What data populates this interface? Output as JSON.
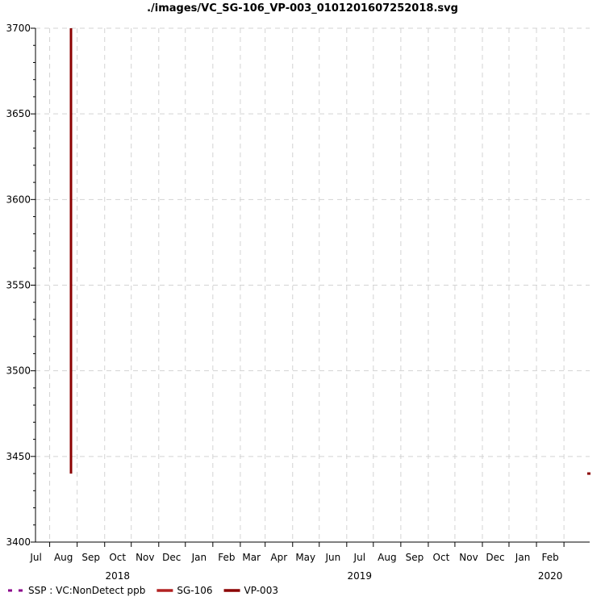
{
  "chart_data": {
    "type": "line",
    "title": "./images/VC_SG-106_VP-003_0101201607252018.svg",
    "xlabel": "",
    "ylabel": "",
    "ylim": [
      3400,
      3700
    ],
    "y_ticks": [
      3400,
      3450,
      3500,
      3550,
      3600,
      3650,
      3700
    ],
    "xlim": [
      "2018-06-15",
      "2020-03-01"
    ],
    "x_ticks": [
      {
        "date": "2018-07-01",
        "label": "Jul"
      },
      {
        "date": "2018-08-01",
        "label": "Aug"
      },
      {
        "date": "2018-09-01",
        "label": "Sep"
      },
      {
        "date": "2018-10-01",
        "label": "Oct"
      },
      {
        "date": "2018-11-01",
        "label": "Nov"
      },
      {
        "date": "2018-12-01",
        "label": "Dec"
      },
      {
        "date": "2019-01-01",
        "label": "Jan"
      },
      {
        "date": "2019-02-01",
        "label": "Feb"
      },
      {
        "date": "2019-03-01",
        "label": "Mar"
      },
      {
        "date": "2019-04-01",
        "label": "Apr"
      },
      {
        "date": "2019-05-01",
        "label": "May"
      },
      {
        "date": "2019-06-01",
        "label": "Jun"
      },
      {
        "date": "2019-07-01",
        "label": "Jul"
      },
      {
        "date": "2019-08-01",
        "label": "Aug"
      },
      {
        "date": "2019-09-01",
        "label": "Sep"
      },
      {
        "date": "2019-10-01",
        "label": "Oct"
      },
      {
        "date": "2019-11-01",
        "label": "Nov"
      },
      {
        "date": "2019-12-01",
        "label": "Dec"
      },
      {
        "date": "2020-01-01",
        "label": "Jan"
      },
      {
        "date": "2020-02-01",
        "label": "Feb"
      }
    ],
    "year_labels": [
      {
        "date": "2018-10-01",
        "label": "2018"
      },
      {
        "date": "2019-07-01",
        "label": "2019"
      },
      {
        "date": "2020-02-01",
        "label": "2020"
      }
    ],
    "grid": true,
    "legend_position": "bottom-left",
    "series": [
      {
        "name": "SSP : VC:NonDetect ppb",
        "color": "#8b008b",
        "style": "dashed",
        "points": []
      },
      {
        "name": "SG-106",
        "color": "#b22222",
        "style": "solid",
        "points": []
      },
      {
        "name": "VP-003",
        "color": "#8b0000",
        "style": "solid",
        "points": [
          {
            "x": "2018-07-25",
            "y": 3440
          },
          {
            "x": "2018-07-25",
            "y": 3700
          }
        ]
      }
    ],
    "edge_marker": {
      "x": "2020-03-01",
      "y": 3440,
      "color": "#8b0000"
    }
  }
}
